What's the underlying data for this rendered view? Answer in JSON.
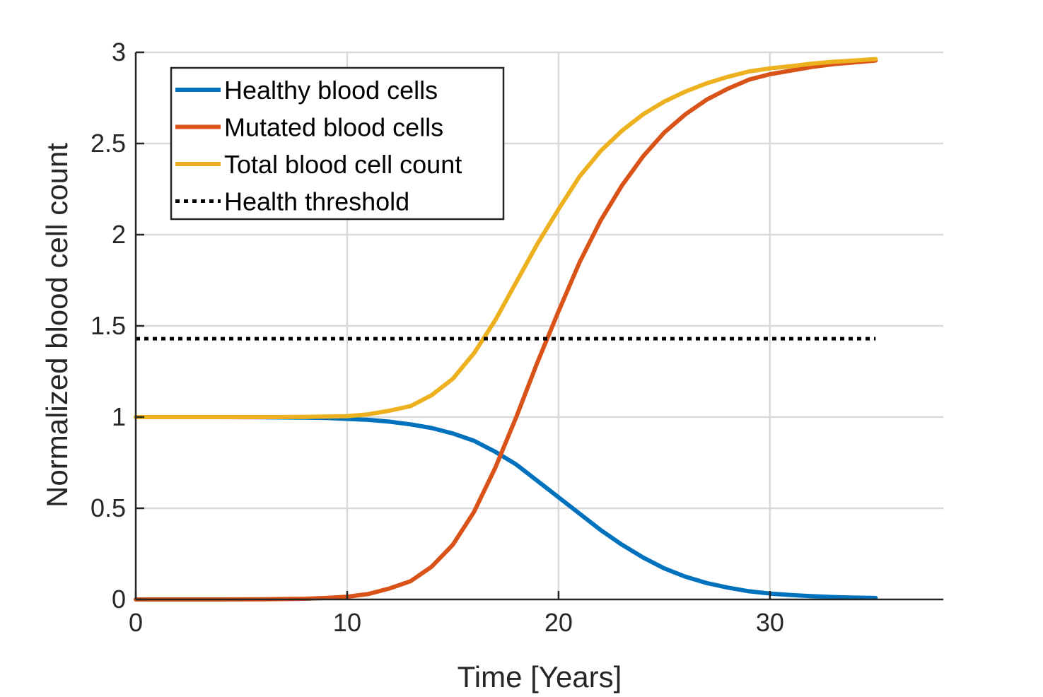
{
  "chart_data": {
    "type": "line",
    "title": "",
    "xlabel": "Time [Years]",
    "ylabel": "Normalized blood cell count",
    "xlim": [
      0,
      38.2
    ],
    "ylim": [
      0,
      3
    ],
    "grid": true,
    "legend_location": "top-left",
    "xticks": [
      0,
      10,
      20,
      30
    ],
    "xtick_labels": [
      "0",
      "10",
      "20",
      "30"
    ],
    "yticks": [
      0,
      0.5,
      1,
      1.5,
      2,
      2.5,
      3
    ],
    "ytick_labels": [
      "0",
      "0.5",
      "1",
      "1.5",
      "2",
      "2.5",
      "3"
    ],
    "x": [
      0,
      2,
      4,
      6,
      8,
      9,
      10,
      11,
      12,
      13,
      14,
      15,
      16,
      17,
      18,
      19,
      20,
      21,
      22,
      23,
      24,
      25,
      26,
      27,
      28,
      29,
      30,
      31,
      32,
      33,
      34,
      35
    ],
    "series": [
      {
        "name": "Healthy blood cells",
        "color": "#0072BD",
        "style": "solid",
        "values": [
          1,
          1,
          1,
          0.999,
          0.997,
          0.995,
          0.99,
          0.985,
          0.975,
          0.96,
          0.94,
          0.91,
          0.87,
          0.81,
          0.74,
          0.65,
          0.56,
          0.47,
          0.38,
          0.3,
          0.23,
          0.17,
          0.125,
          0.09,
          0.065,
          0.045,
          0.032,
          0.024,
          0.018,
          0.013,
          0.01,
          0.008
        ]
      },
      {
        "name": "Mutated blood cells",
        "color": "#D95319",
        "style": "solid",
        "values": [
          0,
          0,
          0,
          0.001,
          0.004,
          0.008,
          0.015,
          0.03,
          0.06,
          0.1,
          0.18,
          0.3,
          0.48,
          0.72,
          1.0,
          1.3,
          1.58,
          1.85,
          2.08,
          2.27,
          2.43,
          2.56,
          2.66,
          2.74,
          2.8,
          2.85,
          2.88,
          2.9,
          2.92,
          2.935,
          2.945,
          2.955
        ]
      },
      {
        "name": "Total blood cell count",
        "color": "#EDB120",
        "style": "solid",
        "values": [
          1,
          1,
          1,
          1.0,
          1.001,
          1.003,
          1.005,
          1.015,
          1.035,
          1.06,
          1.12,
          1.21,
          1.35,
          1.53,
          1.74,
          1.95,
          2.14,
          2.32,
          2.46,
          2.57,
          2.66,
          2.73,
          2.785,
          2.83,
          2.865,
          2.895,
          2.912,
          2.924,
          2.938,
          2.948,
          2.955,
          2.963
        ]
      },
      {
        "name": "Health threshold",
        "color": "#000000",
        "style": "dotted",
        "values": [
          1.43,
          1.43,
          1.43,
          1.43,
          1.43,
          1.43,
          1.43,
          1.43,
          1.43,
          1.43,
          1.43,
          1.43,
          1.43,
          1.43,
          1.43,
          1.43,
          1.43,
          1.43,
          1.43,
          1.43,
          1.43,
          1.43,
          1.43,
          1.43,
          1.43,
          1.43,
          1.43,
          1.43,
          1.43,
          1.43,
          1.43,
          1.43
        ]
      }
    ]
  }
}
